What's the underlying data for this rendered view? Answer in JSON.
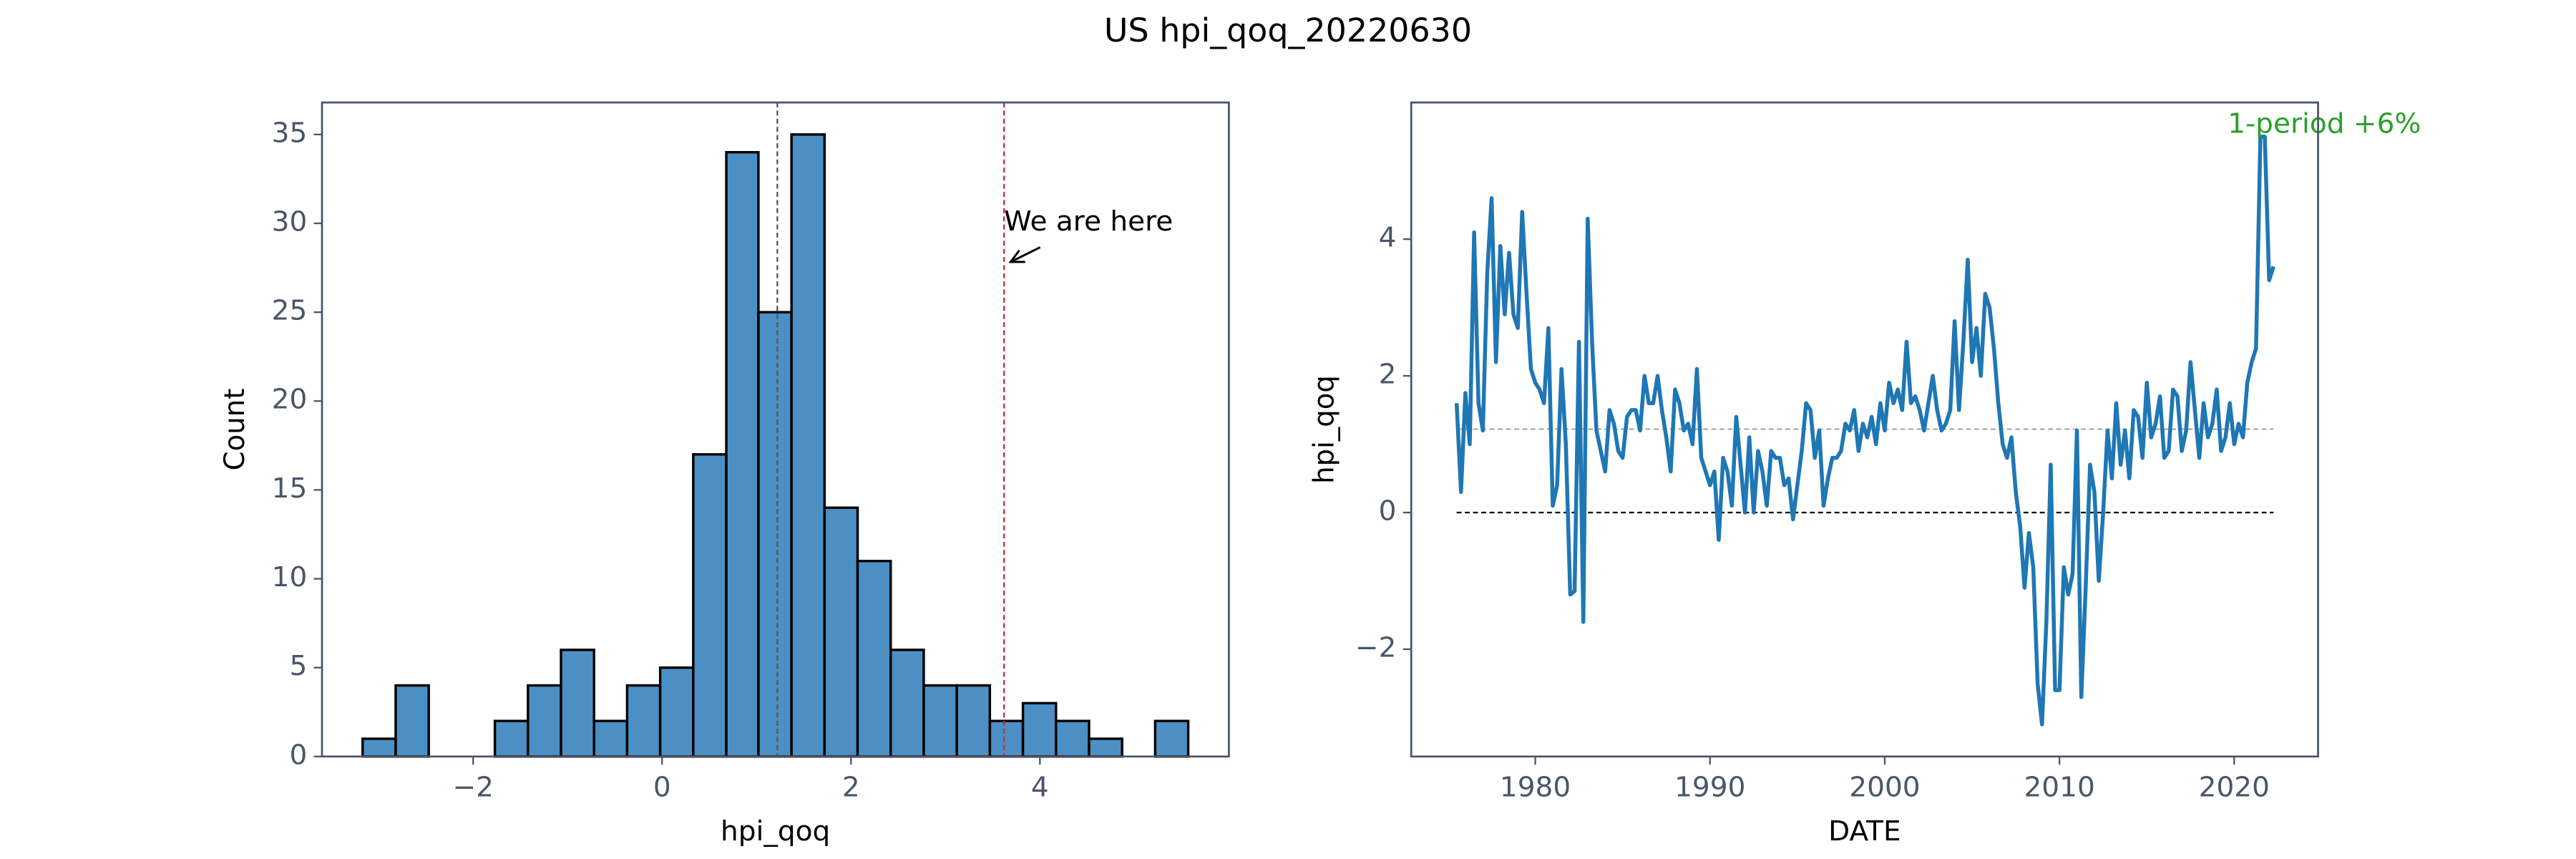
{
  "title": "US hpi_qoq_20220630",
  "chart_data": [
    {
      "type": "histogram",
      "xlabel": "hpi_qoq",
      "ylabel": "Count",
      "color": "#4c8fc4",
      "bins": [
        -3.17,
        -2.82,
        -2.47,
        -2.12,
        -1.77,
        -1.42,
        -1.07,
        -0.72,
        -0.37,
        -0.02,
        0.33,
        0.68,
        1.02,
        1.37,
        1.72,
        2.07,
        2.42,
        2.77,
        3.12,
        3.47,
        3.82,
        4.17,
        4.52,
        4.87,
        5.22,
        5.57
      ],
      "counts": [
        1,
        4,
        0,
        0,
        2,
        4,
        6,
        2,
        4,
        5,
        17,
        34,
        25,
        35,
        14,
        11,
        6,
        4,
        4,
        2,
        3,
        2,
        1,
        0,
        2
      ],
      "vlines": [
        {
          "value": 1.22,
          "color": "#555555"
        },
        {
          "value": 3.62,
          "color": "#d62728"
        }
      ],
      "annotation": "We are here",
      "xlim": [
        -3.6,
        6.0
      ],
      "ylim": [
        0,
        36.8
      ],
      "xticks": [
        {
          "value": -2,
          "label": "−2"
        },
        0,
        2,
        4
      ],
      "yticks": [
        0,
        5,
        10,
        15,
        20,
        25,
        30,
        35
      ]
    },
    {
      "type": "line",
      "xlabel": "DATE",
      "ylabel": "hpi_qoq",
      "x": [
        1975.5,
        1975.75,
        1976,
        1976.25,
        1976.5,
        1976.75,
        1977,
        1977.25,
        1977.5,
        1977.75,
        1978,
        1978.25,
        1978.5,
        1978.75,
        1979,
        1979.25,
        1979.5,
        1979.75,
        1980,
        1980.25,
        1980.5,
        1980.75,
        1981,
        1981.25,
        1981.5,
        1981.75,
        1982,
        1982.25,
        1982.5,
        1982.75,
        1983,
        1983.25,
        1983.5,
        1983.75,
        1984,
        1984.25,
        1984.5,
        1984.75,
        1985,
        1985.25,
        1985.5,
        1985.75,
        1986,
        1986.25,
        1986.5,
        1986.75,
        1987,
        1987.25,
        1987.5,
        1987.75,
        1988,
        1988.25,
        1988.5,
        1988.75,
        1989,
        1989.25,
        1989.5,
        1989.75,
        1990,
        1990.25,
        1990.5,
        1990.75,
        1991,
        1991.25,
        1991.5,
        1991.75,
        1992,
        1992.25,
        1992.5,
        1992.75,
        1993,
        1993.25,
        1993.5,
        1993.75,
        1994,
        1994.25,
        1994.5,
        1994.75,
        1995,
        1995.25,
        1995.5,
        1995.75,
        1996,
        1996.25,
        1996.5,
        1996.75,
        1997,
        1997.25,
        1997.5,
        1997.75,
        1998,
        1998.25,
        1998.5,
        1998.75,
        1999,
        1999.25,
        1999.5,
        1999.75,
        2000,
        2000.25,
        2000.5,
        2000.75,
        2001,
        2001.25,
        2001.5,
        2001.75,
        2002,
        2002.25,
        2002.5,
        2002.75,
        2003,
        2003.25,
        2003.5,
        2003.75,
        2004,
        2004.25,
        2004.5,
        2004.75,
        2005,
        2005.25,
        2005.5,
        2005.75,
        2006,
        2006.25,
        2006.5,
        2006.75,
        2007,
        2007.25,
        2007.5,
        2007.75,
        2008,
        2008.25,
        2008.5,
        2008.75,
        2009,
        2009.25,
        2009.5,
        2009.75,
        2010,
        2010.25,
        2010.5,
        2010.75,
        2011,
        2011.25,
        2011.5,
        2011.75,
        2012,
        2012.25,
        2012.5,
        2012.75,
        2013,
        2013.25,
        2013.5,
        2013.75,
        2014,
        2014.25,
        2014.5,
        2014.75,
        2015,
        2015.25,
        2015.5,
        2015.75,
        2016,
        2016.25,
        2016.5,
        2016.75,
        2017,
        2017.25,
        2017.5,
        2017.75,
        2018,
        2018.25,
        2018.5,
        2018.75,
        2019,
        2019.25,
        2019.5,
        2019.75,
        2020,
        2020.25,
        2020.5,
        2020.75,
        2021,
        2021.25,
        2021.5,
        2021.75,
        2022,
        2022.25
      ],
      "series": [
        {
          "name": "hpi_qoq",
          "color": "#1f77b4",
          "values": [
            1.6,
            0.3,
            1.75,
            1.0,
            4.1,
            1.6,
            1.2,
            3.5,
            4.6,
            2.2,
            3.9,
            2.9,
            3.8,
            2.9,
            2.7,
            4.4,
            3.2,
            2.1,
            1.9,
            1.8,
            1.6,
            2.7,
            0.1,
            0.4,
            2.1,
            1.0,
            -1.2,
            -1.15,
            2.5,
            -1.6,
            4.3,
            2.5,
            1.2,
            0.9,
            0.6,
            1.5,
            1.3,
            0.9,
            0.8,
            1.4,
            1.5,
            1.5,
            1.2,
            2.0,
            1.6,
            1.6,
            2.0,
            1.5,
            1.1,
            0.6,
            1.8,
            1.6,
            1.2,
            1.3,
            1.0,
            2.1,
            0.8,
            0.6,
            0.4,
            0.6,
            -0.4,
            0.8,
            0.6,
            0.1,
            1.4,
            0.7,
            0.0,
            1.1,
            0.0,
            0.9,
            0.6,
            0.1,
            0.9,
            0.8,
            0.8,
            0.4,
            0.5,
            -0.1,
            0.4,
            0.9,
            1.6,
            1.5,
            0.8,
            1.2,
            0.1,
            0.5,
            0.8,
            0.8,
            0.9,
            1.3,
            1.2,
            1.5,
            0.9,
            1.3,
            1.1,
            1.4,
            1.0,
            1.6,
            1.2,
            1.9,
            1.6,
            1.8,
            1.5,
            2.5,
            1.6,
            1.7,
            1.5,
            1.2,
            1.6,
            2.0,
            1.5,
            1.2,
            1.3,
            1.5,
            2.8,
            1.5,
            2.5,
            3.7,
            2.2,
            2.7,
            2.0,
            3.2,
            3.0,
            2.4,
            1.6,
            1.0,
            0.8,
            1.1,
            0.3,
            -0.2,
            -1.1,
            -0.3,
            -0.8,
            -2.5,
            -3.1,
            -1.6,
            0.7,
            -2.6,
            -2.6,
            -0.8,
            -1.2,
            -0.9,
            1.2,
            -2.7,
            -1.1,
            0.7,
            0.3,
            -1.0,
            0.0,
            1.2,
            0.5,
            1.6,
            0.7,
            1.2,
            0.5,
            1.5,
            1.4,
            0.8,
            1.9,
            1.1,
            1.3,
            1.7,
            0.8,
            0.9,
            1.8,
            1.7,
            0.9,
            1.2,
            2.2,
            1.5,
            0.8,
            1.6,
            1.1,
            1.3,
            1.8,
            0.9,
            1.1,
            1.6,
            1.0,
            1.3,
            1.1,
            1.9,
            2.2,
            2.4,
            5.5,
            5.5,
            3.4,
            3.6
          ]
        }
      ],
      "hlines": [
        {
          "value": 1.22,
          "color": "#aaaaaa"
        },
        {
          "value": 0,
          "color": "#000000"
        }
      ],
      "annotation": "1-period +6%",
      "annotation_color": "#2ca02c",
      "xlim": [
        1972.9,
        2024.8
      ],
      "ylim": [
        -3.57,
        6.0
      ],
      "xticks": [
        1980,
        1990,
        2000,
        2010,
        2020
      ],
      "yticks": [
        {
          "value": -2,
          "label": "−2"
        },
        0,
        2,
        4
      ]
    }
  ]
}
